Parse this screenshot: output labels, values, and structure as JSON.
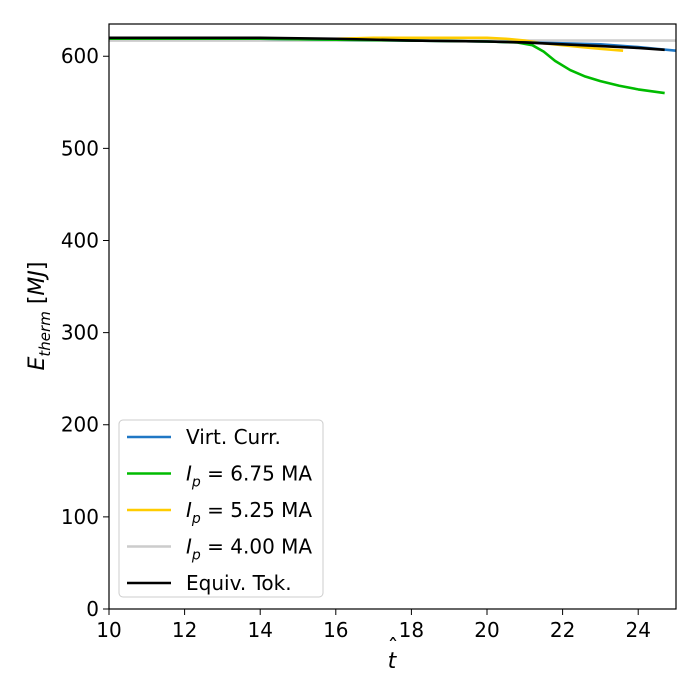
{
  "chart_data": {
    "type": "line",
    "title": "",
    "xlabel": "t̂",
    "ylabel": "E_therm [MJ]",
    "xlim": [
      10,
      25
    ],
    "ylim": [
      0,
      635
    ],
    "xticks": [
      10,
      12,
      14,
      16,
      18,
      20,
      22,
      24
    ],
    "yticks": [
      0,
      100,
      200,
      300,
      400,
      500,
      600
    ],
    "grid": false,
    "legend_position": "lower-left",
    "series": [
      {
        "name": "Virt. Curr.",
        "legend_parts": [
          "Virt. Curr."
        ],
        "color": "#1f77c4",
        "x": [
          10,
          14,
          16,
          18,
          20,
          21,
          22,
          23,
          24,
          24.5,
          25
        ],
        "y": [
          619,
          619,
          618,
          617,
          616,
          615,
          614,
          613,
          610,
          608,
          606
        ]
      },
      {
        "name": "I_p = 6.75 MA",
        "legend_parts": [
          "I",
          "p",
          " = 6.75 MA"
        ],
        "color": "#00bb00",
        "x": [
          10,
          14,
          16,
          18,
          20,
          20.8,
          21.2,
          21.5,
          21.8,
          22.2,
          22.6,
          23.0,
          23.5,
          24.0,
          24.7
        ],
        "y": [
          619,
          619,
          618,
          617,
          616,
          615,
          612,
          605,
          595,
          585,
          578,
          573,
          568,
          564,
          560
        ]
      },
      {
        "name": "I_p = 5.25 MA",
        "legend_parts": [
          "I",
          "p",
          " = 5.25 MA"
        ],
        "color": "#ffcc00",
        "x": [
          10,
          14,
          16,
          17,
          18,
          19,
          20,
          20.5,
          21,
          21.5,
          22,
          22.5,
          23,
          23.6
        ],
        "y": [
          619,
          619,
          619,
          620,
          620,
          620,
          620,
          619,
          617,
          614,
          612,
          610,
          608,
          606
        ]
      },
      {
        "name": "I_p = 4.00 MA",
        "legend_parts": [
          "I",
          "p",
          " = 4.00 MA"
        ],
        "color": "#cccccc",
        "x": [
          10,
          15,
          20,
          25
        ],
        "y": [
          617,
          617,
          617,
          617
        ]
      },
      {
        "name": "Equiv. Tok.",
        "legend_parts": [
          "Equiv. Tok."
        ],
        "color": "#000000",
        "x": [
          10,
          14,
          16,
          18,
          20,
          21,
          22,
          23,
          24,
          24.7
        ],
        "y": [
          620,
          620,
          619,
          617,
          616,
          615,
          613,
          611,
          609,
          607
        ]
      }
    ]
  }
}
